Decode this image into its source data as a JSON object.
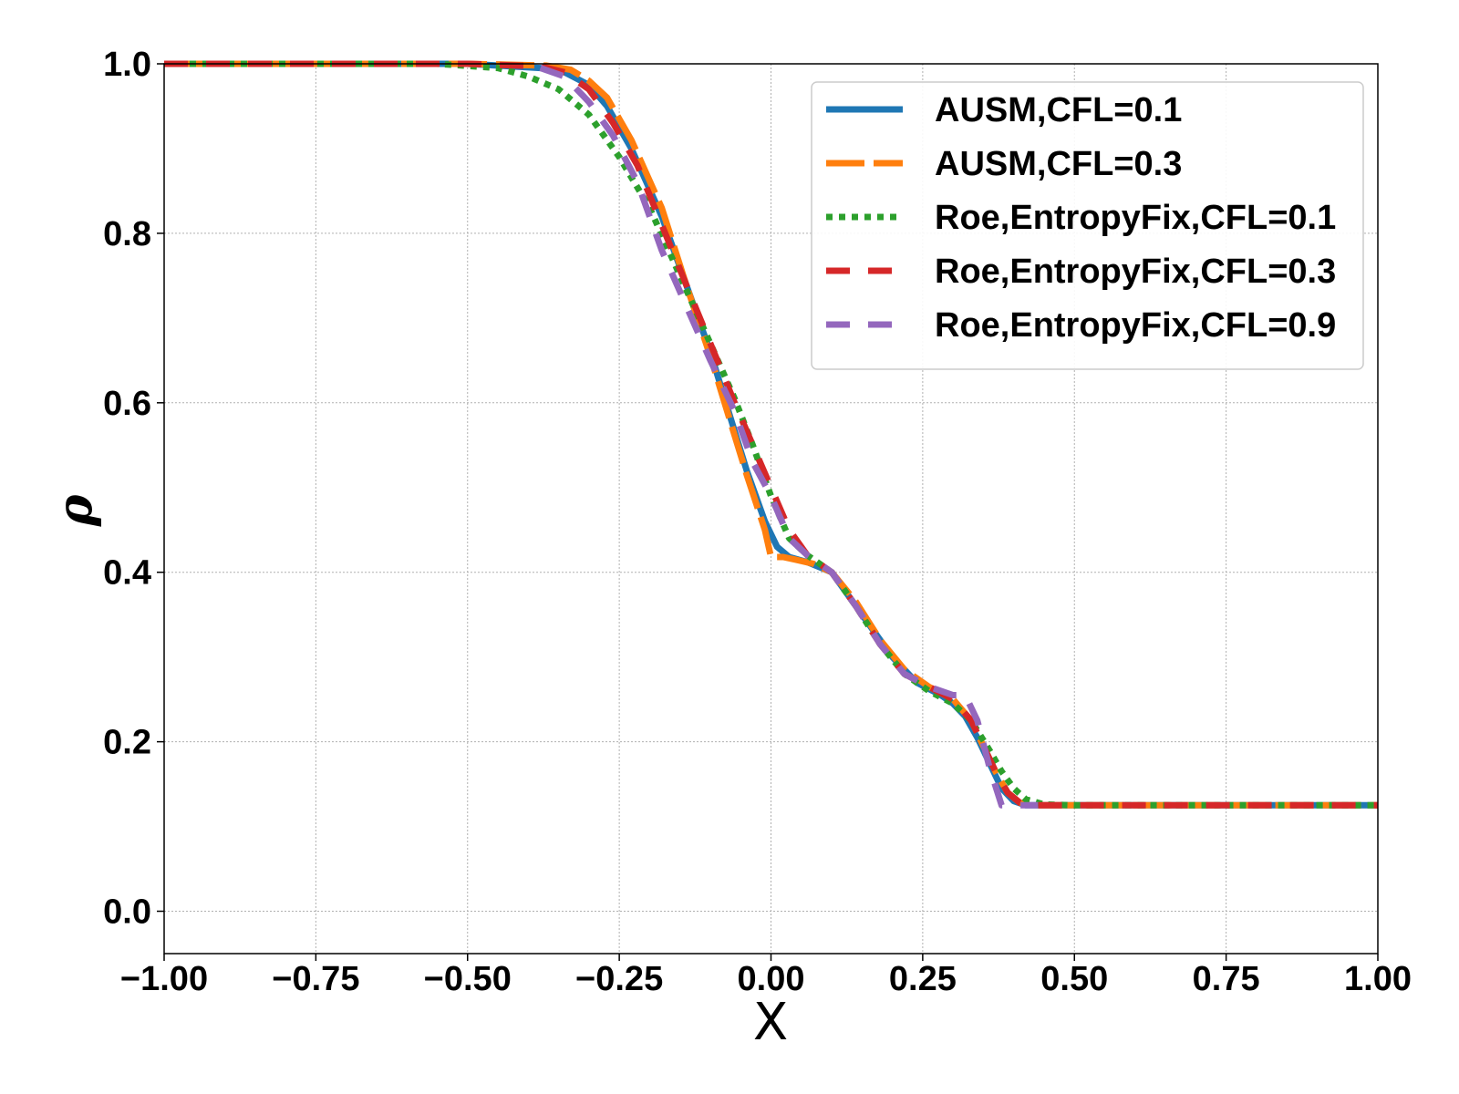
{
  "chart_data": {
    "type": "line",
    "xlabel": "X",
    "ylabel": "ρ",
    "xlim": [
      -1.0,
      1.0
    ],
    "ylim": [
      -0.05,
      1.0
    ],
    "grid": true,
    "legend_position": "top-right",
    "x_ticks": [
      "−1.00",
      "−0.75",
      "−0.50",
      "−0.25",
      "0.00",
      "0.25",
      "0.50",
      "0.75",
      "1.00"
    ],
    "x_tick_values": [
      -1.0,
      -0.75,
      -0.5,
      -0.25,
      0.0,
      0.25,
      0.5,
      0.75,
      1.0
    ],
    "y_ticks": [
      "0.0",
      "0.2",
      "0.4",
      "0.6",
      "0.8",
      "1.0"
    ],
    "y_tick_values": [
      0.0,
      0.2,
      0.4,
      0.6,
      0.8,
      1.0
    ],
    "series": [
      {
        "name": "AUSM,CFL=0.1",
        "color": "#1f77b4",
        "style": "solid",
        "x": [
          -1.0,
          -0.5,
          -0.38,
          -0.34,
          -0.3,
          -0.27,
          -0.23,
          -0.18,
          -0.14,
          -0.1,
          -0.07,
          -0.04,
          -0.01,
          0.01,
          0.03,
          0.06,
          0.1,
          0.15,
          0.2,
          0.24,
          0.28,
          0.3,
          0.32,
          0.34,
          0.36,
          0.38,
          0.4,
          0.42,
          0.45,
          0.5,
          1.0
        ],
        "y": [
          1.0,
          1.0,
          0.995,
          0.99,
          0.975,
          0.95,
          0.9,
          0.82,
          0.74,
          0.66,
          0.59,
          0.52,
          0.46,
          0.43,
          0.418,
          0.412,
          0.4,
          0.35,
          0.3,
          0.27,
          0.255,
          0.245,
          0.23,
          0.205,
          0.175,
          0.145,
          0.13,
          0.125,
          0.125,
          0.125,
          0.125
        ]
      },
      {
        "name": "AUSM,CFL=0.3",
        "color": "#ff7f0e",
        "style": "dashed-long",
        "x": [
          -1.0,
          -0.5,
          -0.37,
          -0.33,
          -0.3,
          -0.27,
          -0.23,
          -0.18,
          -0.14,
          -0.1,
          -0.07,
          -0.04,
          -0.01,
          0.0,
          0.02,
          0.04,
          0.07,
          0.1,
          0.14,
          0.18,
          0.22,
          0.26,
          0.3,
          0.33,
          0.35,
          0.37,
          0.39,
          0.41,
          0.44,
          0.5,
          1.0
        ],
        "y": [
          1.0,
          1.0,
          0.998,
          0.993,
          0.98,
          0.96,
          0.91,
          0.83,
          0.74,
          0.655,
          0.585,
          0.515,
          0.45,
          0.418,
          0.418,
          0.415,
          0.41,
          0.4,
          0.365,
          0.32,
          0.285,
          0.265,
          0.25,
          0.225,
          0.195,
          0.165,
          0.14,
          0.128,
          0.125,
          0.125,
          0.125
        ]
      },
      {
        "name": "Roe,EntropyFix,CFL=0.1",
        "color": "#2ca02c",
        "style": "dotted",
        "x": [
          -1.0,
          -0.55,
          -0.45,
          -0.4,
          -0.35,
          -0.3,
          -0.25,
          -0.2,
          -0.15,
          -0.1,
          -0.06,
          -0.03,
          0.0,
          0.03,
          0.06,
          0.1,
          0.14,
          0.18,
          0.22,
          0.26,
          0.3,
          0.33,
          0.36,
          0.38,
          0.4,
          0.42,
          0.45,
          0.5,
          1.0
        ],
        "y": [
          1.0,
          1.0,
          0.995,
          0.985,
          0.97,
          0.94,
          0.89,
          0.83,
          0.75,
          0.67,
          0.605,
          0.55,
          0.49,
          0.44,
          0.42,
          0.4,
          0.36,
          0.315,
          0.28,
          0.26,
          0.245,
          0.225,
          0.19,
          0.165,
          0.145,
          0.132,
          0.126,
          0.125,
          0.125
        ]
      },
      {
        "name": "Roe,EntropyFix,CFL=0.3",
        "color": "#d62728",
        "style": "dashed",
        "x": [
          -1.0,
          -0.5,
          -0.38,
          -0.34,
          -0.3,
          -0.26,
          -0.22,
          -0.18,
          -0.14,
          -0.1,
          -0.06,
          -0.03,
          0.0,
          0.03,
          0.06,
          0.1,
          0.14,
          0.18,
          0.22,
          0.26,
          0.3,
          0.33,
          0.35,
          0.37,
          0.39,
          0.41,
          0.44,
          0.5,
          1.0
        ],
        "y": [
          1.0,
          1.0,
          0.997,
          0.99,
          0.97,
          0.93,
          0.88,
          0.81,
          0.74,
          0.67,
          0.6,
          0.55,
          0.5,
          0.45,
          0.42,
          0.4,
          0.36,
          0.315,
          0.28,
          0.265,
          0.25,
          0.225,
          0.195,
          0.165,
          0.14,
          0.128,
          0.125,
          0.125,
          0.125
        ]
      },
      {
        "name": "Roe,EntropyFix,CFL=0.9",
        "color": "#9467bd",
        "style": "dashed",
        "x": [
          -0.38,
          -0.34,
          -0.3,
          -0.26,
          -0.22,
          -0.18,
          -0.14,
          -0.1,
          -0.06,
          -0.03,
          0.0,
          0.03,
          0.06,
          0.1,
          0.14,
          0.18,
          0.22,
          0.26,
          0.3,
          0.32,
          0.34,
          0.36,
          0.38,
          0.4,
          0.42,
          0.44
        ],
        "y": [
          0.995,
          0.985,
          0.955,
          0.915,
          0.86,
          0.78,
          0.715,
          0.65,
          0.59,
          0.53,
          0.49,
          0.44,
          0.42,
          0.4,
          0.36,
          0.315,
          0.28,
          0.265,
          0.255,
          0.255,
          0.225,
          0.17,
          0.125,
          0.125,
          0.125,
          0.125
        ]
      }
    ]
  }
}
